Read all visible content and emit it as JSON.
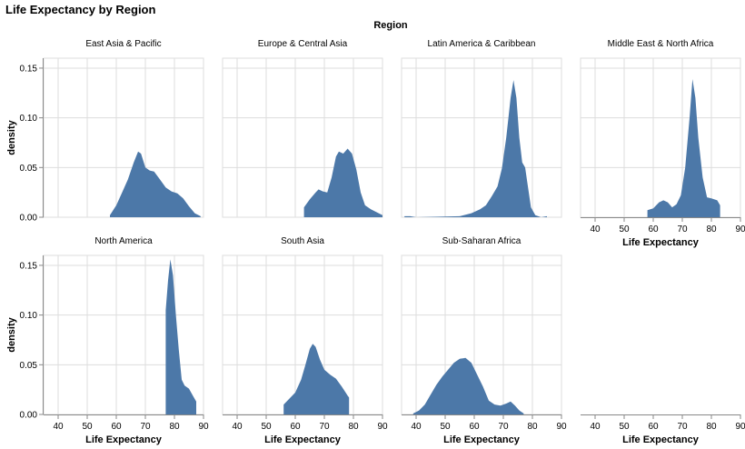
{
  "chart_data": {
    "type": "area",
    "title": "Life Expectancy by Region",
    "facet_title": "Region",
    "xlabel": "Life Expectancy",
    "ylabel": "density",
    "xlim": [
      35,
      90
    ],
    "ylim": [
      0,
      0.16
    ],
    "x_ticks": [
      40,
      50,
      60,
      70,
      80,
      90
    ],
    "y_ticks": [
      0.0,
      0.05,
      0.1,
      0.15
    ],
    "y_tick_labels": [
      "0.00",
      "0.05",
      "0.10",
      "0.15"
    ],
    "grid": true,
    "color": "#4c78a8",
    "panels": [
      {
        "name": "East Asia & Pacific",
        "points": [
          [
            57.8,
            0.002
          ],
          [
            60,
            0.012
          ],
          [
            62,
            0.025
          ],
          [
            64,
            0.038
          ],
          [
            66,
            0.055
          ],
          [
            67.5,
            0.066
          ],
          [
            68.5,
            0.064
          ],
          [
            70,
            0.05
          ],
          [
            71.5,
            0.047
          ],
          [
            73,
            0.046
          ],
          [
            75,
            0.038
          ],
          [
            77,
            0.03
          ],
          [
            79,
            0.026
          ],
          [
            81,
            0.024
          ],
          [
            83,
            0.019
          ],
          [
            85,
            0.011
          ],
          [
            87,
            0.004
          ],
          [
            89,
            0.001
          ]
        ]
      },
      {
        "name": "Europe & Central Asia",
        "points": [
          [
            63,
            0.01
          ],
          [
            65,
            0.018
          ],
          [
            67,
            0.025
          ],
          [
            68,
            0.028
          ],
          [
            69.5,
            0.026
          ],
          [
            71,
            0.025
          ],
          [
            72.5,
            0.04
          ],
          [
            74,
            0.061
          ],
          [
            75,
            0.066
          ],
          [
            76.5,
            0.064
          ],
          [
            78,
            0.069
          ],
          [
            79.5,
            0.064
          ],
          [
            81,
            0.048
          ],
          [
            82.5,
            0.025
          ],
          [
            84,
            0.012
          ],
          [
            86,
            0.008
          ],
          [
            88,
            0.005
          ],
          [
            90,
            0.002
          ]
        ]
      },
      {
        "name": "Latin America & Caribbean",
        "points": [
          [
            36,
            0.001
          ],
          [
            38,
            0.001
          ],
          [
            40,
            0.0
          ],
          [
            55,
            0.001
          ],
          [
            59,
            0.004
          ],
          [
            62,
            0.008
          ],
          [
            64,
            0.012
          ],
          [
            66,
            0.021
          ],
          [
            68,
            0.031
          ],
          [
            69.5,
            0.049
          ],
          [
            71,
            0.08
          ],
          [
            72.5,
            0.12
          ],
          [
            73.5,
            0.138
          ],
          [
            74.5,
            0.12
          ],
          [
            75.5,
            0.08
          ],
          [
            76.5,
            0.055
          ],
          [
            77.5,
            0.05
          ],
          [
            78.5,
            0.03
          ],
          [
            79.5,
            0.01
          ],
          [
            81,
            0.002
          ],
          [
            83,
            0.0
          ],
          [
            85,
            0.001
          ]
        ]
      },
      {
        "name": "Middle East & North Africa",
        "points": [
          [
            58,
            0.007
          ],
          [
            60,
            0.009
          ],
          [
            62,
            0.015
          ],
          [
            63.5,
            0.017
          ],
          [
            65,
            0.015
          ],
          [
            66.5,
            0.01
          ],
          [
            68,
            0.013
          ],
          [
            69.5,
            0.022
          ],
          [
            71,
            0.05
          ],
          [
            72.5,
            0.1
          ],
          [
            73.5,
            0.139
          ],
          [
            74.5,
            0.12
          ],
          [
            75.5,
            0.08
          ],
          [
            77,
            0.04
          ],
          [
            78.5,
            0.02
          ],
          [
            80,
            0.019
          ],
          [
            82,
            0.017
          ],
          [
            83,
            0.012
          ]
        ]
      },
      {
        "name": "North America",
        "points": [
          [
            77,
            0.105
          ],
          [
            77.8,
            0.135
          ],
          [
            78.6,
            0.156
          ],
          [
            79.5,
            0.14
          ],
          [
            80.5,
            0.1
          ],
          [
            81.5,
            0.065
          ],
          [
            82.5,
            0.035
          ],
          [
            83.5,
            0.029
          ],
          [
            85,
            0.026
          ],
          [
            86.5,
            0.018
          ],
          [
            87.5,
            0.013
          ]
        ]
      },
      {
        "name": "South Asia",
        "points": [
          [
            56,
            0.01
          ],
          [
            58,
            0.016
          ],
          [
            60,
            0.022
          ],
          [
            62,
            0.035
          ],
          [
            63.5,
            0.05
          ],
          [
            65,
            0.066
          ],
          [
            66,
            0.071
          ],
          [
            67,
            0.068
          ],
          [
            68.5,
            0.055
          ],
          [
            70,
            0.045
          ],
          [
            72,
            0.04
          ],
          [
            74,
            0.036
          ],
          [
            76,
            0.028
          ],
          [
            78,
            0.019
          ],
          [
            78.5,
            0.017
          ]
        ]
      },
      {
        "name": "Sub-Saharan Africa",
        "points": [
          [
            39,
            0.001
          ],
          [
            41,
            0.004
          ],
          [
            43,
            0.01
          ],
          [
            45,
            0.02
          ],
          [
            47,
            0.03
          ],
          [
            49,
            0.038
          ],
          [
            51,
            0.045
          ],
          [
            53,
            0.052
          ],
          [
            55,
            0.056
          ],
          [
            57,
            0.057
          ],
          [
            59,
            0.052
          ],
          [
            61,
            0.04
          ],
          [
            63,
            0.028
          ],
          [
            65,
            0.014
          ],
          [
            67,
            0.01
          ],
          [
            69,
            0.009
          ],
          [
            71,
            0.011
          ],
          [
            72.5,
            0.013
          ],
          [
            74,
            0.009
          ],
          [
            75.5,
            0.004
          ],
          [
            77,
            0.001
          ]
        ]
      },
      {
        "name": "",
        "points": []
      }
    ]
  }
}
